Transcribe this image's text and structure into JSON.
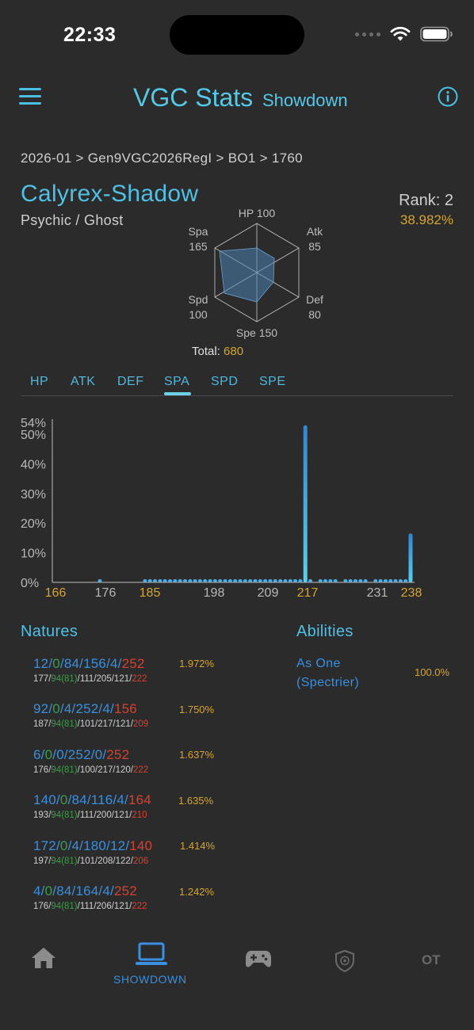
{
  "status": {
    "time": "22:33"
  },
  "header": {
    "title": "VGC Stats",
    "subtitle": "Showdown"
  },
  "breadcrumb": "2026-01 > Gen9VGC2026RegI > BO1 > 1760",
  "pokemon": {
    "name": "Calyrex-Shadow",
    "types": "Psychic / Ghost",
    "rank": "Rank: 2",
    "usage": "38.982%"
  },
  "base_stats": {
    "hp": {
      "label": "HP",
      "value": "100"
    },
    "atk": {
      "label": "Atk",
      "value": "85"
    },
    "def": {
      "label": "Def",
      "value": "80"
    },
    "spe": {
      "label": "Spe",
      "value": "150"
    },
    "spd": {
      "label": "Spd",
      "value": "100"
    },
    "spa": {
      "label": "Spa",
      "value": "165"
    },
    "total_label": "Total:",
    "total_value": "680"
  },
  "tabs": [
    "HP",
    "ATK",
    "DEF",
    "SPA",
    "SPD",
    "SPE"
  ],
  "active_tab": "SPA",
  "chart_data": {
    "type": "bar",
    "y_ticks": [
      "0%",
      "10%",
      "20%",
      "30%",
      "40%",
      "50%",
      "54%"
    ],
    "ylim": [
      0,
      54
    ],
    "xlim": [
      166,
      238
    ],
    "x_ticks": [
      {
        "label": "166",
        "highlight": true
      },
      {
        "label": "176",
        "highlight": false
      },
      {
        "label": "185",
        "highlight": true
      },
      {
        "label": "198",
        "highlight": false
      },
      {
        "label": "209",
        "highlight": false
      },
      {
        "label": "217",
        "highlight": true
      },
      {
        "label": "231",
        "highlight": false
      },
      {
        "label": "238",
        "highlight": true
      }
    ],
    "x_tick_values": [
      166,
      176,
      185,
      198,
      209,
      217,
      231,
      238
    ],
    "x": [
      176,
      185,
      186,
      187,
      188,
      189,
      190,
      191,
      192,
      193,
      194,
      195,
      196,
      197,
      198,
      199,
      200,
      201,
      202,
      203,
      204,
      205,
      206,
      207,
      208,
      209,
      210,
      211,
      212,
      213,
      214,
      215,
      216,
      217,
      218,
      220,
      221,
      222,
      223,
      225,
      226,
      227,
      228,
      229,
      231,
      232,
      233,
      234,
      235,
      236,
      237,
      238
    ],
    "values": [
      0.6,
      0.5,
      0.9,
      0.6,
      0.6,
      0.5,
      0.6,
      0.6,
      0.5,
      0.6,
      0.6,
      0.5,
      0.6,
      0.6,
      0.5,
      0.9,
      0.6,
      0.5,
      0.5,
      0.6,
      0.5,
      1.0,
      0.6,
      0.6,
      0.5,
      0.6,
      0.6,
      0.6,
      0.6,
      0.6,
      0.5,
      0.5,
      0.6,
      53.0,
      0.6,
      0.6,
      0.5,
      0.6,
      0.5,
      0.6,
      0.5,
      0.6,
      0.6,
      0.5,
      0.6,
      0.6,
      0.5,
      0.6,
      0.5,
      0.6,
      0.6,
      16.5
    ],
    "grid": false
  },
  "natures_title": "Natures",
  "abilities_title": "Abilities",
  "natures": [
    {
      "evs": [
        "12",
        "0",
        "84",
        "156",
        "4",
        "252"
      ],
      "stats": [
        "177",
        "94",
        "(81)",
        "111",
        "205",
        "121",
        "222"
      ],
      "pct": "1.972%"
    },
    {
      "evs": [
        "92",
        "0",
        "4",
        "252",
        "4",
        "156"
      ],
      "stats": [
        "187",
        "94",
        "(81)",
        "101",
        "217",
        "121",
        "209"
      ],
      "pct": "1.750%"
    },
    {
      "evs": [
        "6",
        "0",
        "0",
        "252",
        "0",
        "252"
      ],
      "stats": [
        "176",
        "94",
        "(81)",
        "100",
        "217",
        "120",
        "222"
      ],
      "pct": "1.637%"
    },
    {
      "evs": [
        "140",
        "0",
        "84",
        "116",
        "4",
        "164"
      ],
      "stats": [
        "193",
        "94",
        "(81)",
        "111",
        "200",
        "121",
        "210"
      ],
      "pct": "1.635%"
    },
    {
      "evs": [
        "172",
        "0",
        "4",
        "180",
        "12",
        "140"
      ],
      "stats": [
        "197",
        "94",
        "(81)",
        "101",
        "208",
        "122",
        "206"
      ],
      "pct": "1.414%"
    },
    {
      "evs": [
        "4",
        "0",
        "84",
        "164",
        "4",
        "252"
      ],
      "stats": [
        "176",
        "94",
        "(81)",
        "111",
        "206",
        "121",
        "222"
      ],
      "pct": "1.242%"
    }
  ],
  "abilities": [
    {
      "name_line1": "As One",
      "name_line2": "(Spectrier)",
      "pct": "100.0%"
    }
  ],
  "nav": {
    "showdown_label": "SHOWDOWN",
    "ot_label": "OT"
  },
  "colors": {
    "accent": "#4fc0e6",
    "gold": "#d6a531",
    "ev_blue": "#3a8fe0",
    "atk_green": "#3e9c4a",
    "spe_red": "#d8402e",
    "background": "#2b2b2b"
  }
}
